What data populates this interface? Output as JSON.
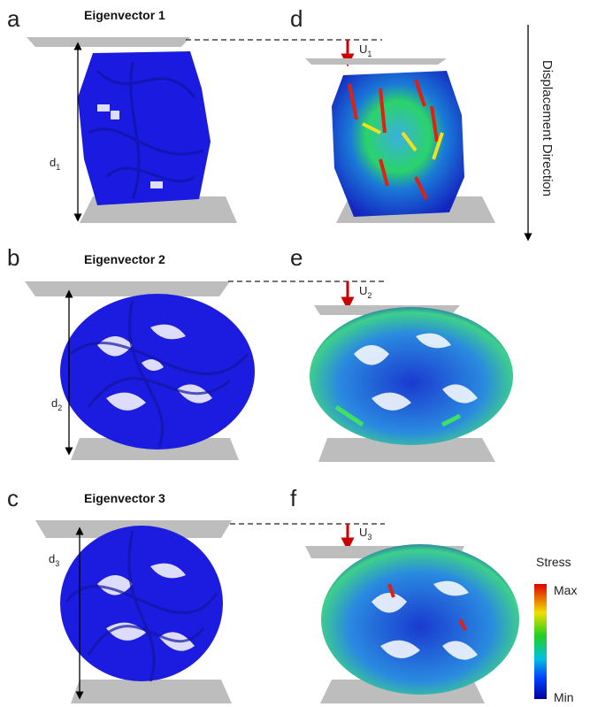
{
  "panels": [
    {
      "label": "a",
      "title": "Eigenvector 1",
      "distance": {
        "base": "d",
        "sub": "1"
      }
    },
    {
      "label": "b",
      "title": "Eigenvector 2",
      "distance": {
        "base": "d",
        "sub": "2"
      }
    },
    {
      "label": "c",
      "title": "Eigenvector 3",
      "distance": {
        "base": "d",
        "sub": "3"
      }
    },
    {
      "label": "d",
      "displacement": {
        "base": "U",
        "sub": "1"
      }
    },
    {
      "label": "e",
      "displacement": {
        "base": "U",
        "sub": "2"
      }
    },
    {
      "label": "f",
      "displacement": {
        "base": "U",
        "sub": "3"
      }
    }
  ],
  "direction_label": "Displacement Direction",
  "legend": {
    "title": "Stress",
    "max": "Max",
    "min": "Min"
  }
}
